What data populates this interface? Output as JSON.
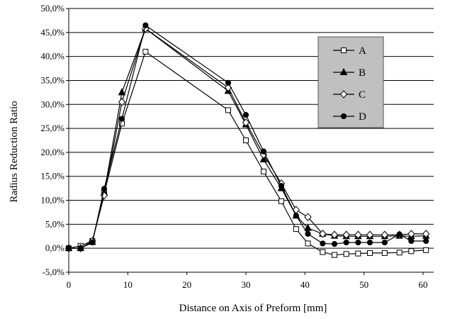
{
  "chart_data": {
    "type": "line",
    "title": "",
    "xlabel": "Distance on Axis of Preform [mm]",
    "ylabel": "Radius Reduction Ratio",
    "xlim": [
      0,
      60
    ],
    "ylim": [
      -5,
      50
    ],
    "x_ticks": [
      0,
      10,
      20,
      30,
      40,
      50,
      60
    ],
    "x_tick_labels": [
      "0",
      "10",
      "20",
      "30",
      "40",
      "50",
      "60"
    ],
    "y_ticks": [
      -5,
      0,
      5,
      10,
      15,
      20,
      25,
      30,
      35,
      40,
      45,
      50
    ],
    "y_tick_labels": [
      "-5,0%",
      "0,0%",
      "5,0%",
      "10,0%",
      "15,0%",
      "20,0%",
      "25,0%",
      "30,0%",
      "35,0%",
      "40,0%",
      "45,0%",
      "50,0%"
    ],
    "grid": "horizontal",
    "legend_position": "top-right",
    "background_color": "#ffffff",
    "legend_background": "#c0c0c0",
    "series": [
      {
        "name": "A",
        "marker": "open-square",
        "color": "#000000",
        "x": [
          0,
          2,
          4,
          6,
          9,
          13,
          27,
          30,
          33,
          36,
          38.5,
          40.5,
          43,
          45,
          47,
          49,
          51,
          53.5,
          56,
          58,
          60.5
        ],
        "y": [
          0,
          0.5,
          1.5,
          11.5,
          26,
          41,
          28.8,
          22.5,
          16,
          9.8,
          4,
          1,
          -0.8,
          -1.4,
          -1.2,
          -1.1,
          -1,
          -1,
          -0.9,
          -0.6,
          -0.4
        ]
      },
      {
        "name": "B",
        "marker": "filled-triangle",
        "color": "#000000",
        "x": [
          0,
          2,
          4,
          6,
          9,
          13,
          27,
          30,
          33,
          36,
          38.5,
          40.5,
          43,
          45,
          47,
          49,
          51,
          53.5,
          56,
          58,
          60.5
        ],
        "y": [
          0,
          0,
          1.3,
          11.6,
          32.5,
          45.8,
          32.8,
          25.8,
          18.5,
          12.5,
          6.8,
          4.2,
          3,
          2.6,
          2.5,
          2.5,
          2.5,
          2.5,
          2.6,
          2.5,
          2.6
        ]
      },
      {
        "name": "C",
        "marker": "open-diamond",
        "color": "#000000",
        "x": [
          0,
          2,
          4,
          6,
          9,
          13,
          27,
          30,
          33,
          36,
          38.5,
          40.5,
          43,
          45,
          47,
          49,
          51,
          53.5,
          56,
          58,
          60.5
        ],
        "y": [
          0,
          0,
          1.5,
          11,
          30.5,
          45.8,
          33.5,
          26.2,
          19.5,
          13.5,
          8,
          6.5,
          3,
          2.8,
          2.8,
          2.8,
          2.8,
          2.8,
          2.8,
          3,
          3
        ]
      },
      {
        "name": "D",
        "marker": "filled-circle",
        "color": "#000000",
        "x": [
          0,
          2,
          4,
          6,
          9,
          13,
          27,
          30,
          33,
          36,
          38.5,
          40.5,
          43,
          45,
          47,
          49,
          51,
          53.5,
          56,
          58,
          60.5
        ],
        "y": [
          0,
          0,
          1.2,
          12.4,
          27,
          46.5,
          34.5,
          27.8,
          20.2,
          13,
          6.8,
          3,
          1,
          0.9,
          1.2,
          1.2,
          1.2,
          1.2,
          2.9,
          1.5,
          1.5
        ]
      }
    ]
  }
}
